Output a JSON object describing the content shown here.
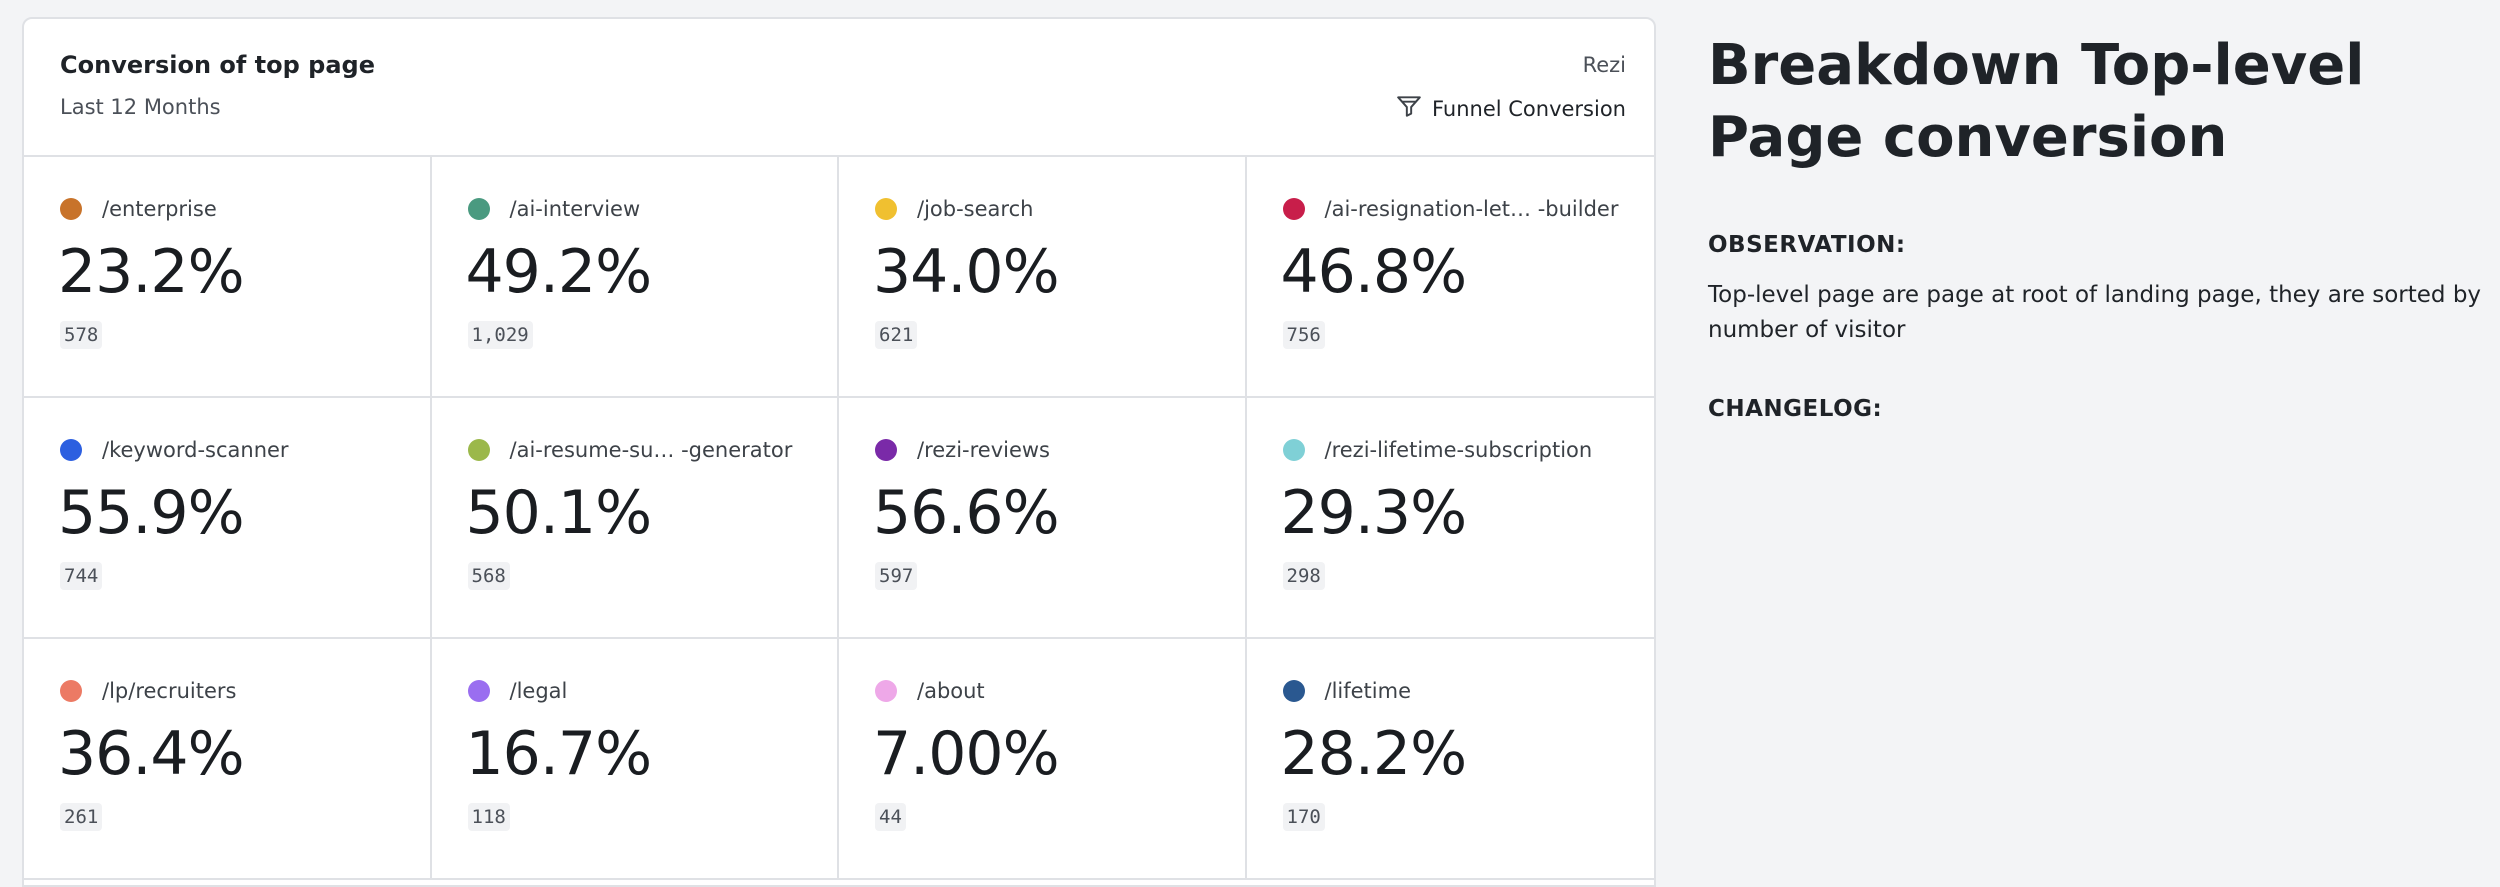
{
  "card": {
    "title": "Conversion of top page",
    "subtitle": "Last 12 Months",
    "source": "Rezi",
    "funnel_label": "Funnel Conversion",
    "funnel_icon": "funnel-icon"
  },
  "tiles": [
    {
      "path": "/enterprise",
      "percent": "23.2%",
      "count": "578",
      "color": "#c8732a"
    },
    {
      "path": "/ai-interview",
      "percent": "49.2%",
      "count": "1,029",
      "color": "#4a9a80"
    },
    {
      "path": "/job-search",
      "percent": "34.0%",
      "count": "621",
      "color": "#f0c030"
    },
    {
      "path": "/ai-resignation-let… -builder",
      "percent": "46.8%",
      "count": "756",
      "color": "#c81e4a"
    },
    {
      "path": "/keyword-scanner",
      "percent": "55.9%",
      "count": "744",
      "color": "#2c5fe0"
    },
    {
      "path": "/ai-resume-su…  -generator",
      "percent": "50.1%",
      "count": "568",
      "color": "#9bb84a"
    },
    {
      "path": "/rezi-reviews",
      "percent": "56.6%",
      "count": "597",
      "color": "#7a2aa8"
    },
    {
      "path": "/rezi-lifetime-subscription",
      "percent": "29.3%",
      "count": "298",
      "color": "#7fd0d6"
    },
    {
      "path": "/lp/recruiters",
      "percent": "36.4%",
      "count": "261",
      "color": "#ec7a64"
    },
    {
      "path": "/legal",
      "percent": "16.7%",
      "count": "118",
      "color": "#9a6ef0"
    },
    {
      "path": "/about",
      "percent": "7.00%",
      "count": "44",
      "color": "#eea8e8"
    },
    {
      "path": "/lifetime",
      "percent": "28.2%",
      "count": "170",
      "color": "#2a5890"
    }
  ],
  "side": {
    "title": "Breakdown Top-level Page conversion",
    "observation_label": "OBSERVATION:",
    "observation_text": "Top-level page are page at root of landing page, they are sorted by number of visitor",
    "changelog_label": "CHANGELOG:"
  }
}
